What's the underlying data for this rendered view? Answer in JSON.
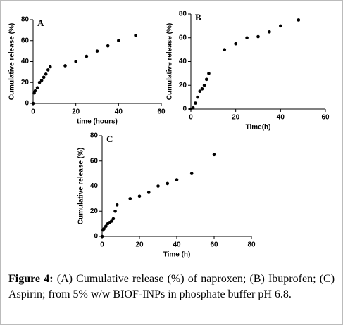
{
  "chart_data": [
    {
      "type": "scatter",
      "panel": "A",
      "x_label": "time (hours)",
      "y_label": "Cumulative release (%)",
      "x": [
        0,
        0.5,
        1,
        2,
        3,
        4,
        5,
        6,
        7,
        8,
        15,
        20,
        25,
        30,
        35,
        40,
        48
      ],
      "values": [
        0,
        10,
        12,
        15,
        20,
        22,
        25,
        28,
        32,
        35,
        36,
        40,
        45,
        50,
        55,
        60,
        65
      ],
      "xlim": [
        0,
        60
      ],
      "ylim": [
        0,
        80
      ],
      "xticks": [
        0,
        20,
        40,
        60
      ],
      "yticks": [
        0,
        20,
        40,
        60,
        80
      ],
      "color": "#000000"
    },
    {
      "type": "scatter",
      "panel": "B",
      "x_label": "Time(h)",
      "y_label": "Cumulative release (%)",
      "x": [
        0,
        1,
        2,
        3,
        4,
        5,
        6,
        7,
        8,
        15,
        20,
        25,
        30,
        35,
        40,
        48
      ],
      "values": [
        0,
        1,
        5,
        10,
        15,
        17,
        20,
        25,
        30,
        50,
        55,
        60,
        61,
        65,
        70,
        75
      ],
      "xlim": [
        0,
        60
      ],
      "ylim": [
        0,
        80
      ],
      "xticks": [
        0,
        20,
        40,
        60
      ],
      "yticks": [
        0,
        20,
        40,
        60,
        80
      ],
      "color": "#000000"
    },
    {
      "type": "scatter",
      "panel": "C",
      "x_label": "Time (h)",
      "y_label": "Cumulative release (%)",
      "x": [
        0,
        0.5,
        1,
        2,
        3,
        4,
        5,
        6,
        7,
        8,
        15,
        20,
        25,
        30,
        35,
        40,
        48,
        60
      ],
      "values": [
        0,
        5,
        6,
        8,
        10,
        11,
        12,
        14,
        20,
        25,
        30,
        32,
        35,
        40,
        42,
        45,
        50,
        65
      ],
      "xlim": [
        0,
        80
      ],
      "ylim": [
        0,
        80
      ],
      "xticks": [
        0,
        20,
        40,
        60,
        80
      ],
      "yticks": [
        0,
        20,
        40,
        60,
        80
      ],
      "color": "#000000"
    }
  ],
  "caption": {
    "label": "Figure 4:",
    "text": "(A) Cumulative release (%) of naproxen; (B) Ibuprofen; (C) Aspirin; from 5% w/w BIOF-INPs in phosphate buffer pH 6.8."
  }
}
